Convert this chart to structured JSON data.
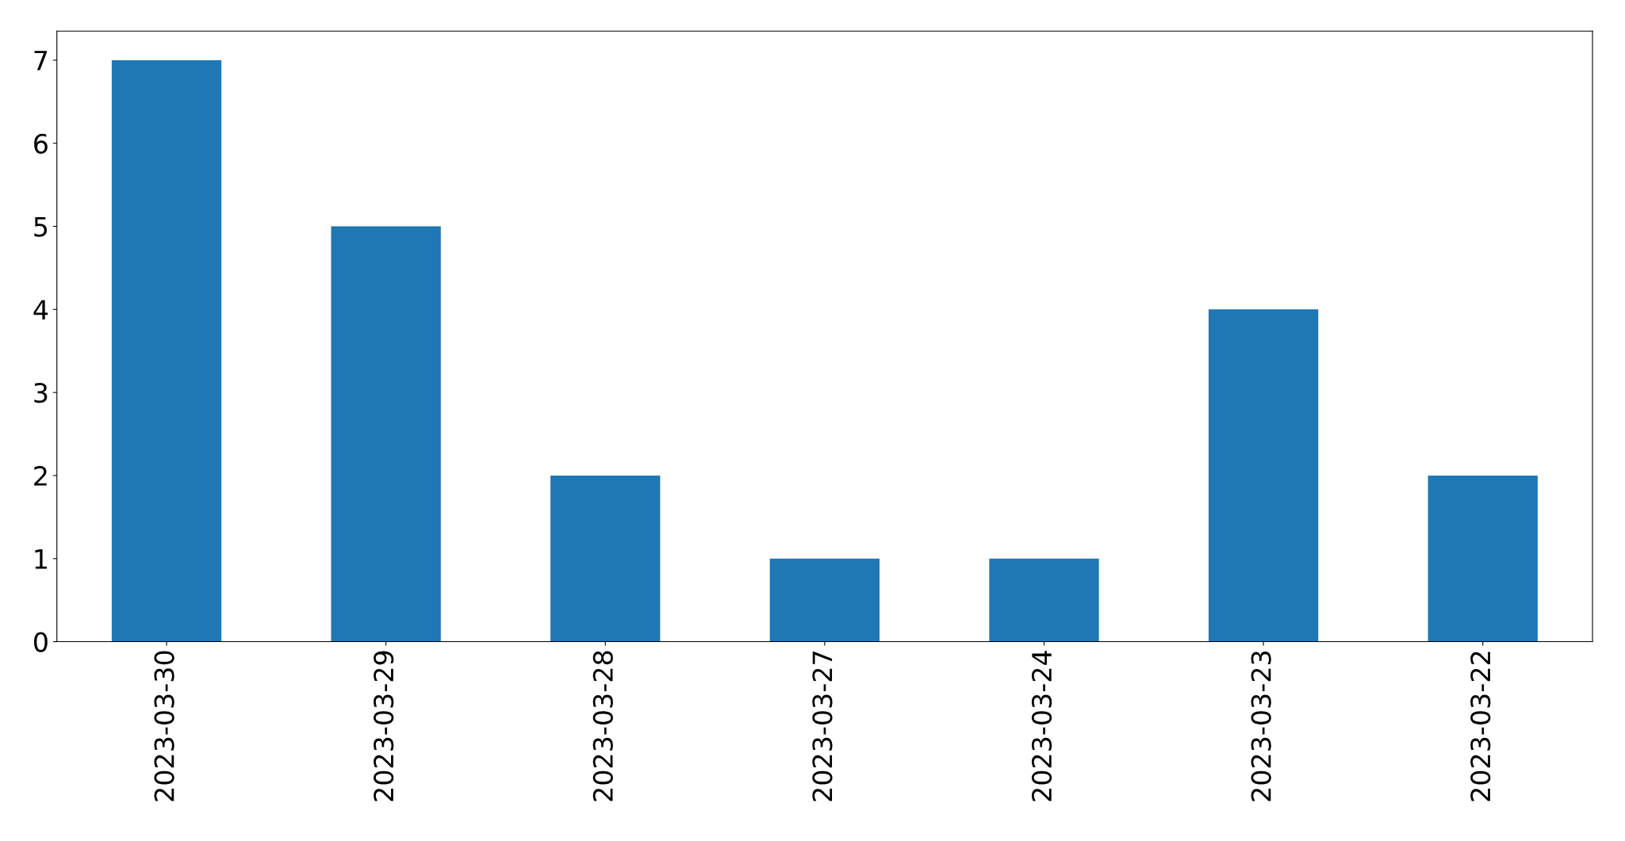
{
  "chart_data": {
    "type": "bar",
    "categories": [
      "2023-03-30",
      "2023-03-29",
      "2023-03-28",
      "2023-03-27",
      "2023-03-24",
      "2023-03-23",
      "2023-03-22"
    ],
    "values": [
      7,
      5,
      2,
      1,
      1,
      4,
      2
    ],
    "color": "#1f77b4",
    "ylim": [
      0,
      7.35
    ],
    "yticks": [
      0,
      1,
      2,
      3,
      4,
      5,
      6,
      7
    ],
    "grid": false,
    "legend": false
  }
}
